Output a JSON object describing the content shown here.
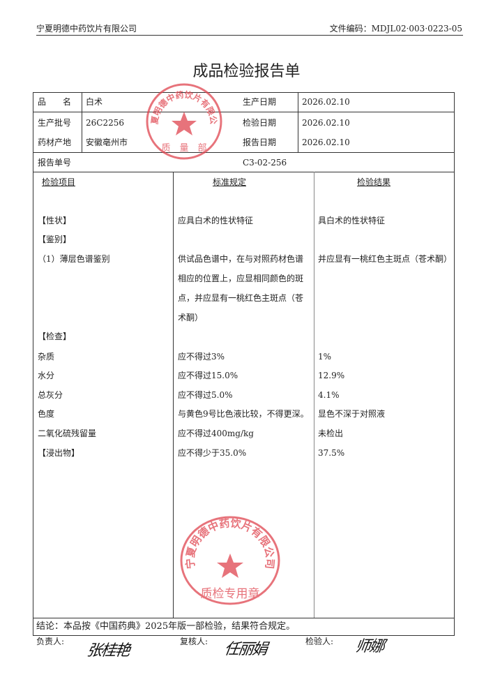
{
  "header": {
    "company": "宁夏明德中药饮片有限公司",
    "doc_no": "文件编码：MDJL02·003·0223-05"
  },
  "title": "成品检验报告单",
  "info": {
    "name_label": "品　　名",
    "name": "白术",
    "batch_label": "生产批号",
    "batch": "26C2256",
    "origin_label": "药材产地",
    "origin": "安徽亳州市",
    "prod_date_label": "生产日期",
    "prod_date": "2026.02.10",
    "test_date_label": "检验日期",
    "test_date": "2026.02.10",
    "report_date_label": "报告日期",
    "report_date": "2026.02.10",
    "report_no_label": "报告单号",
    "report_no": "C3-02-256"
  },
  "columns": [
    "检验项目",
    "标准规定",
    "检验结果"
  ],
  "rows": [
    {
      "item": "【性状】",
      "standard": "应具白术的性状特征",
      "result": "具白术的性状特征"
    },
    {
      "item": "【鉴别】",
      "standard": "",
      "result": ""
    },
    {
      "item": "（1）薄层色谱鉴别",
      "standard_lines": [
        "供试品色谱中，在与对照药材色谱",
        "相应的位置上，应显相同颜色的斑",
        "点，并应显有一桃红色主斑点（苍",
        "术酮）"
      ],
      "result": "并应显有一桃红色主斑点（苍术酮）"
    },
    {
      "item": "【检查】",
      "standard": "",
      "result": ""
    },
    {
      "item": "杂质",
      "standard": "应不得过3%",
      "result": "1%"
    },
    {
      "item": "水分",
      "standard": "应不得过15.0%",
      "result": "12.9%"
    },
    {
      "item": "总灰分",
      "standard": "应不得过5.0%",
      "result": "4.1%"
    },
    {
      "item": "色度",
      "standard": "与黄色9号比色液比较，不得更深。",
      "result": "显色不深于对照液"
    },
    {
      "item": "二氧化硫残留量",
      "standard": "应不得过400mg/kg",
      "result": "未检出"
    },
    {
      "item": "【浸出物】",
      "standard": "应不得少于35.0%",
      "result": "37.5%"
    }
  ],
  "conclusion": "结论：本品按《中国药典》2025年版一部检验，结果符合规定。",
  "signoff": {
    "responsible_label": "负责人:",
    "reviewer_label": "复核人:",
    "inspector_label": "检验人:",
    "responsible_sig": "张桂艳",
    "reviewer_sig": "任丽娟",
    "inspector_sig": "师娜"
  },
  "stamps": {
    "top": {
      "ring": "宁夏明德中药饮片有限公司",
      "center": "质　量　部"
    },
    "bottom": {
      "ring": "宁夏明德中药饮片有限公司",
      "center": "质检专用章"
    },
    "color": "#e0454f"
  }
}
